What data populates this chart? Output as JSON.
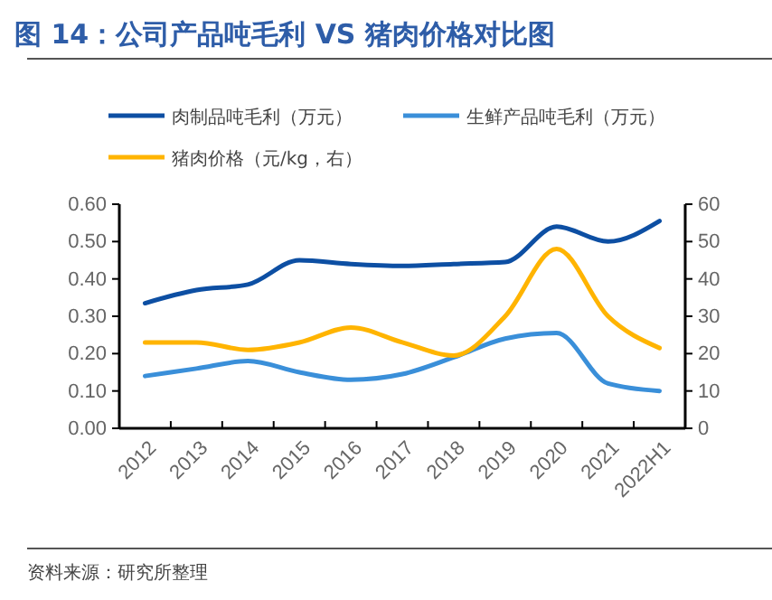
{
  "chart_data": {
    "type": "line",
    "title": "图 14：公司产品吨毛利 VS 猪肉价格对比图",
    "categories": [
      "2012",
      "2013",
      "2014",
      "2015",
      "2016",
      "2017",
      "2018",
      "2019",
      "2020",
      "2021",
      "2022H1"
    ],
    "series": [
      {
        "name": "肉制品吨毛利（万元）",
        "color": "#0d4fa3",
        "values": [
          0.335,
          0.37,
          0.385,
          0.45,
          0.44,
          0.435,
          0.44,
          0.445,
          0.54,
          0.5,
          0.555
        ]
      },
      {
        "name": "生鲜产品吨毛利（万元）",
        "color": "#3a8fd9",
        "values": [
          0.14,
          0.16,
          0.18,
          0.15,
          0.13,
          0.145,
          0.19,
          0.24,
          0.255,
          0.12,
          0.1
        ]
      },
      {
        "name": "猪肉价格（元/kg，右）",
        "color": "#ffb400",
        "axis": "y2",
        "values": [
          23,
          23,
          21,
          23,
          27,
          23,
          19.5,
          30,
          48,
          30,
          21.5
        ]
      }
    ],
    "ylim": [
      0,
      0.6
    ],
    "yticks": [
      {
        "value": 0,
        "label": "0.00"
      },
      {
        "value": 0.1,
        "label": "0.10"
      },
      {
        "value": 0.2,
        "label": "0.20"
      },
      {
        "value": 0.3,
        "label": "0.30"
      },
      {
        "value": 0.4,
        "label": "0.40"
      },
      {
        "value": 0.5,
        "label": "0.50"
      },
      {
        "value": 0.6,
        "label": "0.60"
      }
    ],
    "y2lim": [
      0,
      60
    ],
    "y2ticks": [
      0,
      10,
      20,
      30,
      40,
      50,
      60
    ],
    "legend": "top",
    "grid": false,
    "annotations": [
      "资料来源：研究所整理"
    ]
  }
}
